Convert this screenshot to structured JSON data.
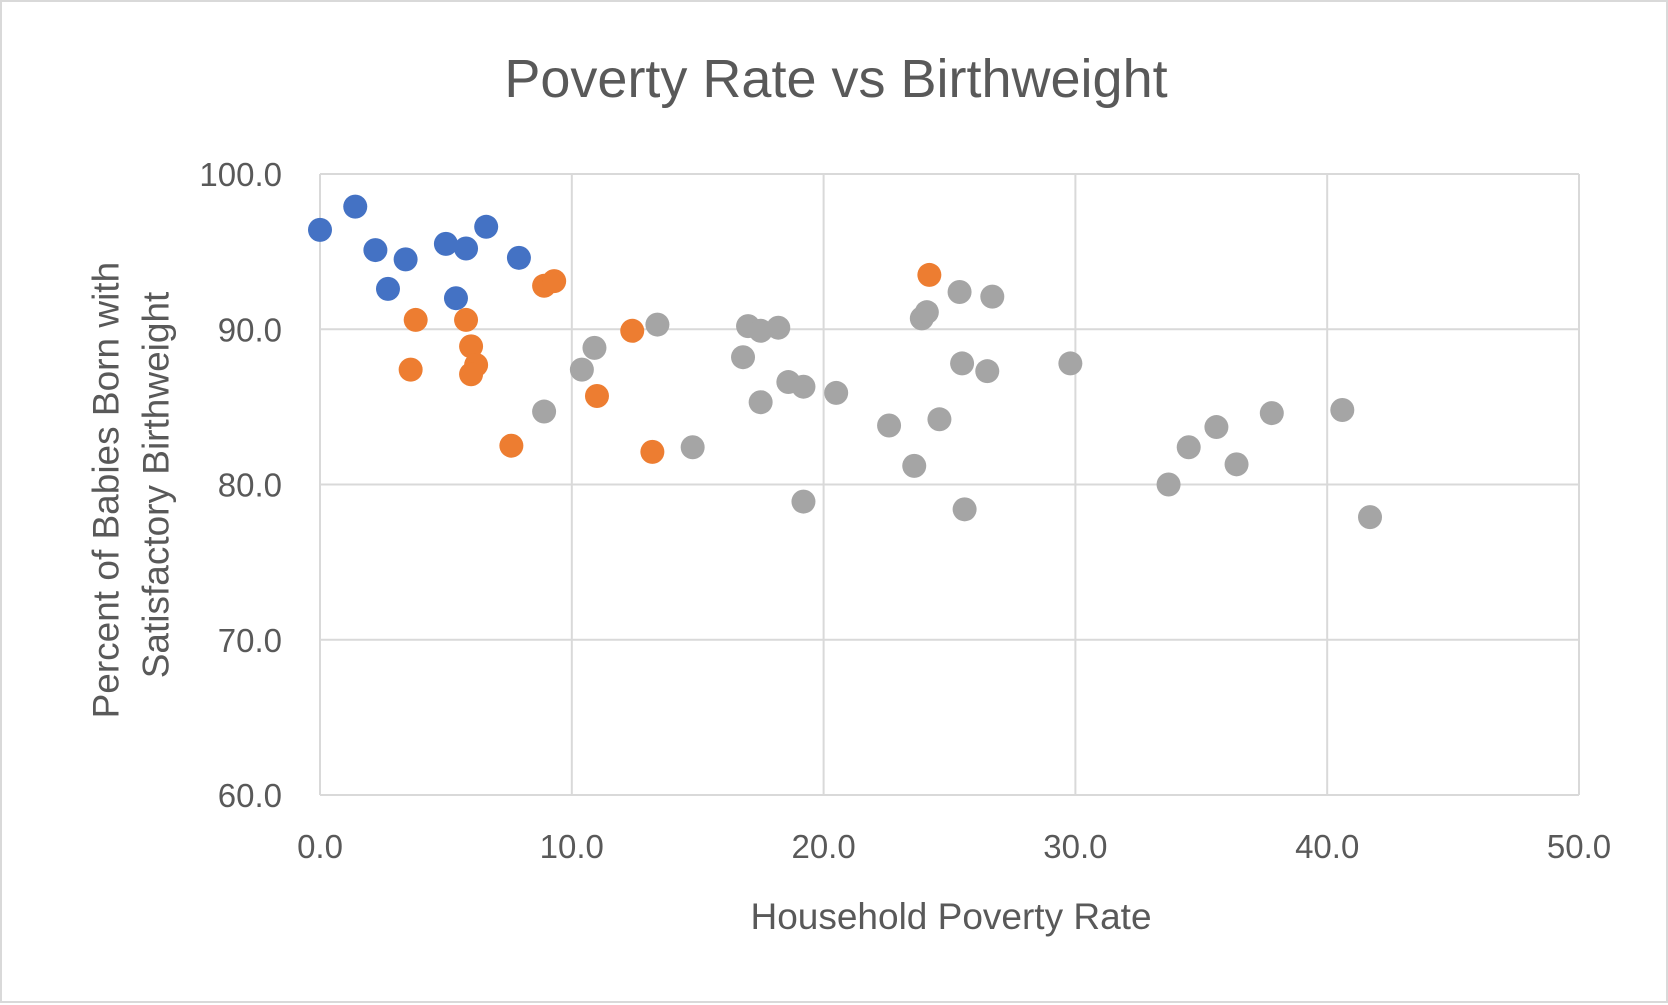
{
  "chart_data": {
    "type": "scatter",
    "title": "Poverty Rate vs Birthweight",
    "xlabel": "Household Poverty Rate",
    "ylabel_lines": [
      "Percent of Babies Born with",
      "Satisfactory Birthweight"
    ],
    "xlim": [
      0,
      50
    ],
    "ylim": [
      60,
      100
    ],
    "x_ticks": [
      "0.0",
      "10.0",
      "20.0",
      "30.0",
      "40.0",
      "50.0"
    ],
    "y_ticks": [
      "60.0",
      "70.0",
      "80.0",
      "90.0",
      "100.0"
    ],
    "grid": true,
    "legend": "none",
    "series": [
      {
        "color": "#4472c4",
        "points": [
          [
            0.0,
            96.4
          ],
          [
            1.4,
            97.9
          ],
          [
            2.2,
            95.1
          ],
          [
            2.7,
            92.6
          ],
          [
            3.4,
            94.5
          ],
          [
            5.0,
            95.5
          ],
          [
            5.4,
            92.0
          ],
          [
            5.8,
            95.2
          ],
          [
            6.6,
            96.6
          ],
          [
            7.9,
            94.6
          ]
        ]
      },
      {
        "color": "#ed7d31",
        "points": [
          [
            3.6,
            87.4
          ],
          [
            3.8,
            90.6
          ],
          [
            5.8,
            90.6
          ],
          [
            6.0,
            88.9
          ],
          [
            6.2,
            87.7
          ],
          [
            6.0,
            87.1
          ],
          [
            7.6,
            82.5
          ],
          [
            8.9,
            92.8
          ],
          [
            9.3,
            93.1
          ],
          [
            11.0,
            85.7
          ],
          [
            12.4,
            89.9
          ],
          [
            13.2,
            82.1
          ],
          [
            24.2,
            93.5
          ]
        ]
      },
      {
        "color": "#a5a5a5",
        "points": [
          [
            8.9,
            84.7
          ],
          [
            10.4,
            87.4
          ],
          [
            10.9,
            88.8
          ],
          [
            13.4,
            90.3
          ],
          [
            14.8,
            82.4
          ],
          [
            16.8,
            88.2
          ],
          [
            17.0,
            90.2
          ],
          [
            17.5,
            89.9
          ],
          [
            17.5,
            85.3
          ],
          [
            18.2,
            90.1
          ],
          [
            18.6,
            86.6
          ],
          [
            19.2,
            86.3
          ],
          [
            19.2,
            78.9
          ],
          [
            20.5,
            85.9
          ],
          [
            22.6,
            83.8
          ],
          [
            23.6,
            81.2
          ],
          [
            23.9,
            90.7
          ],
          [
            24.1,
            91.1
          ],
          [
            24.6,
            84.2
          ],
          [
            25.4,
            92.4
          ],
          [
            25.5,
            87.8
          ],
          [
            25.6,
            78.4
          ],
          [
            26.5,
            87.3
          ],
          [
            26.7,
            92.1
          ],
          [
            29.8,
            87.8
          ],
          [
            33.7,
            80.0
          ],
          [
            34.5,
            82.4
          ],
          [
            35.6,
            83.7
          ],
          [
            36.4,
            81.3
          ],
          [
            37.8,
            84.6
          ],
          [
            40.6,
            84.8
          ],
          [
            41.7,
            77.9
          ]
        ]
      }
    ]
  }
}
